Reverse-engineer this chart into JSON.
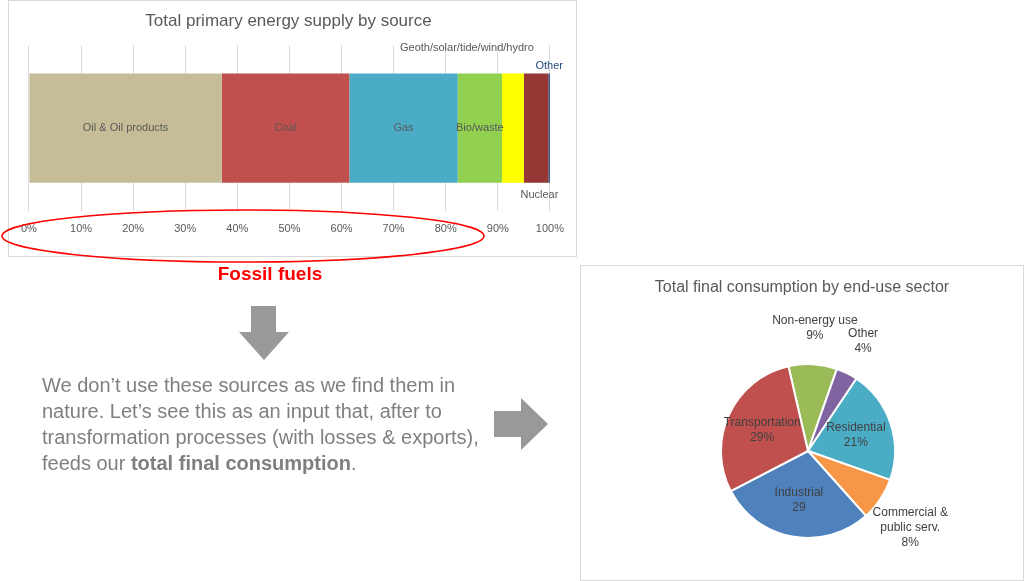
{
  "chart_data": [
    {
      "type": "bar",
      "orientation": "horizontal",
      "stacked": true,
      "title": "Total primary energy supply by source",
      "categories": [
        null
      ],
      "series": [
        {
          "name": "Oil & Oil products",
          "color": "#c4bd97",
          "values": [
            37.0
          ]
        },
        {
          "name": "Coal",
          "color": "#c0504d",
          "values": [
            24.5
          ]
        },
        {
          "name": "Gas",
          "color": "#4bacc6",
          "values": [
            20.8
          ]
        },
        {
          "name": "Bio/waste",
          "color": "#92d050",
          "values": [
            8.5
          ]
        },
        {
          "name": "Geoth/solar/tide/wind/hydro",
          "color": "#ffff00",
          "values": [
            4.2
          ]
        },
        {
          "name": "Nuclear",
          "color": "#953735",
          "values": [
            4.7
          ]
        },
        {
          "name": "Other",
          "color": "#1f497d",
          "values": [
            0.3
          ]
        }
      ],
      "xlim": [
        0,
        100
      ],
      "xticks": [
        {
          "value": 0,
          "label": "0%"
        },
        {
          "value": 10,
          "label": "10%"
        },
        {
          "value": 20,
          "label": "20%"
        },
        {
          "value": 30,
          "label": "30%"
        },
        {
          "value": 40,
          "label": "40%"
        },
        {
          "value": 50,
          "label": "50%"
        },
        {
          "value": 60,
          "label": "60%"
        },
        {
          "value": 70,
          "label": "70%"
        },
        {
          "value": 80,
          "label": "80%"
        },
        {
          "value": 90,
          "label": "90%"
        },
        {
          "value": 100,
          "label": "100%"
        }
      ],
      "grid": "x",
      "annotations": [
        "Fossil fuels"
      ]
    },
    {
      "type": "pie",
      "title": "Total final consumption by end-use sector",
      "categories": [
        "Non-energy use",
        "Other",
        "Residential",
        "Commercial & public serv.",
        "Industrial",
        "Transportation"
      ],
      "values": [
        9,
        4,
        21,
        8,
        29,
        29
      ],
      "colors": [
        "#9bbb59",
        "#8064a2",
        "#4bacc6",
        "#f79646",
        "#4f81bd",
        "#c0504d"
      ],
      "value_labels": [
        "9%",
        "4%",
        "21%",
        "8%",
        "29",
        "29%"
      ]
    },
    {
      "type": "other",
      "annotations": [
        "We don’t use these sources as we find them in nature. Let’s see this as an input that, after to transformation processes (with losses & exports), feeds our ",
        "total final consumption",
        "."
      ]
    }
  ]
}
